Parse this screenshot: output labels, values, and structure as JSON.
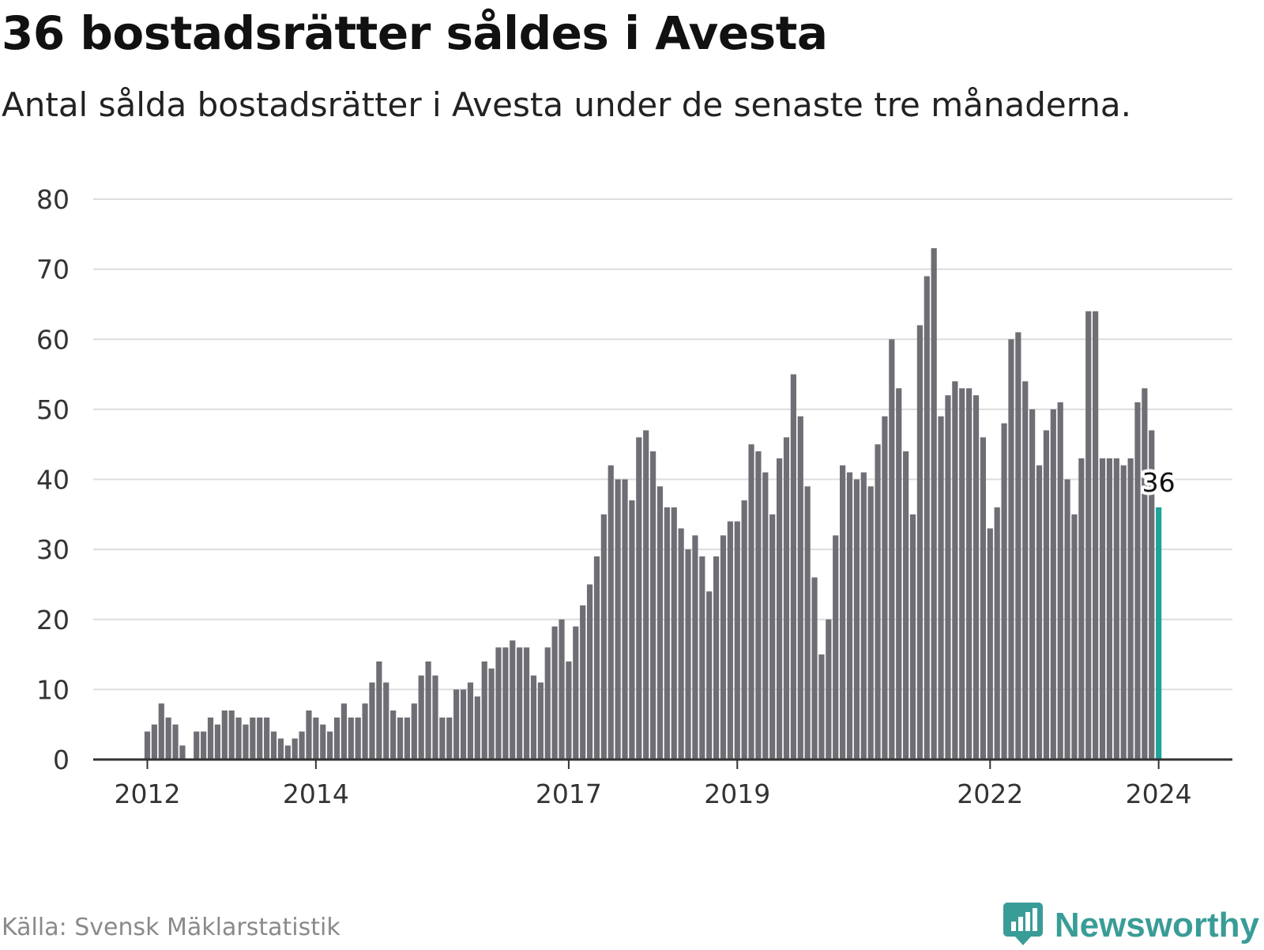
{
  "title": "36 bostadsrätter såldes i Avesta",
  "subtitle": "Antal sålda bostadsrätter i Avesta under de senaste tre månaderna.",
  "source": "Källa: Svensk Mäklarstatistik",
  "brand": {
    "name": "Newsworthy",
    "icon": "newsworthy-logo-icon",
    "color": "#3a9c97"
  },
  "colors": {
    "bar": "#6f6e75",
    "highlight": "#1fa39a",
    "grid": "#dddddd",
    "axis": "#333333"
  },
  "chart_data": {
    "type": "bar",
    "title": "36 bostadsrätter såldes i Avesta",
    "xlabel": "",
    "ylabel": "",
    "ylim": [
      0,
      80
    ],
    "yticks": [
      0,
      10,
      20,
      30,
      40,
      50,
      60,
      70,
      80
    ],
    "start": "2012-01",
    "xticks": [
      {
        "label": "2012",
        "index": 0
      },
      {
        "label": "2014",
        "index": 24
      },
      {
        "label": "2017",
        "index": 60
      },
      {
        "label": "2019",
        "index": 84
      },
      {
        "label": "2022",
        "index": 120
      },
      {
        "label": "2024",
        "index": 144
      }
    ],
    "values": [
      4,
      5,
      8,
      6,
      5,
      2,
      0,
      4,
      4,
      6,
      5,
      7,
      7,
      6,
      5,
      6,
      6,
      6,
      4,
      3,
      2,
      3,
      4,
      7,
      6,
      5,
      4,
      6,
      8,
      6,
      6,
      8,
      11,
      14,
      11,
      7,
      6,
      6,
      8,
      12,
      14,
      12,
      6,
      6,
      10,
      10,
      11,
      9,
      14,
      13,
      16,
      16,
      17,
      16,
      16,
      12,
      11,
      16,
      19,
      20,
      14,
      19,
      22,
      25,
      29,
      35,
      42,
      40,
      40,
      37,
      46,
      47,
      44,
      39,
      36,
      36,
      33,
      30,
      32,
      29,
      24,
      29,
      32,
      34,
      34,
      37,
      45,
      44,
      41,
      35,
      43,
      46,
      55,
      49,
      39,
      26,
      15,
      20,
      32,
      42,
      41,
      40,
      41,
      39,
      45,
      49,
      60,
      53,
      44,
      35,
      62,
      69,
      73,
      49,
      52,
      54,
      53,
      53,
      52,
      46,
      33,
      36,
      48,
      60,
      61,
      54,
      50,
      42,
      47,
      50,
      51,
      40,
      35,
      43,
      64,
      64,
      43,
      43,
      43,
      42,
      43,
      51,
      53,
      47,
      36
    ],
    "highlight": {
      "index": 144,
      "value": 36,
      "label": "36"
    }
  }
}
